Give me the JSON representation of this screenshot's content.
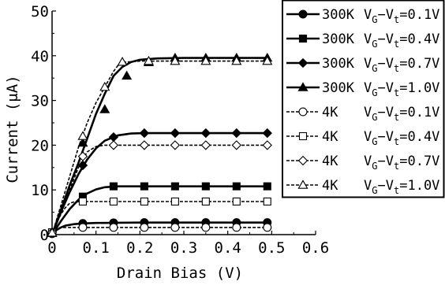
{
  "chart_data": {
    "type": "line",
    "title": "",
    "xlabel": "Drain Bias (V)",
    "ylabel_parts": [
      "Current (",
      "μ",
      "A)"
    ],
    "xlim": [
      0,
      0.6
    ],
    "ylim": [
      0,
      50
    ],
    "xticks": [
      "0",
      "0.1",
      "0.2",
      "0.3",
      "0.4",
      "0.5",
      "0.6"
    ],
    "yticks": [
      "0",
      "10",
      "20",
      "30",
      "40",
      "50"
    ],
    "grid": false,
    "legend_position": "top-right",
    "series": [
      {
        "temp": "300K",
        "bias": "0.1V",
        "marker": "circle-filled",
        "dashed": false,
        "curve": [
          [
            0,
            0
          ],
          [
            0.01,
            1.0
          ],
          [
            0.02,
            1.6
          ],
          [
            0.03,
            2.0
          ],
          [
            0.05,
            2.35
          ],
          [
            0.07,
            2.5
          ],
          [
            0.1,
            2.6
          ],
          [
            0.15,
            2.65
          ],
          [
            0.2,
            2.7
          ],
          [
            0.3,
            2.7
          ],
          [
            0.4,
            2.7
          ],
          [
            0.49,
            2.7
          ]
        ],
        "markers": [
          [
            0.0,
            0.2
          ],
          [
            0.07,
            2.5
          ],
          [
            0.14,
            2.65
          ],
          [
            0.21,
            2.7
          ],
          [
            0.28,
            2.7
          ],
          [
            0.35,
            2.7
          ],
          [
            0.42,
            2.7
          ],
          [
            0.49,
            2.7
          ]
        ]
      },
      {
        "temp": "300K",
        "bias": "0.4V",
        "marker": "square-filled",
        "dashed": false,
        "curve": [
          [
            0,
            0
          ],
          [
            0.02,
            3
          ],
          [
            0.04,
            5.7
          ],
          [
            0.06,
            7.8
          ],
          [
            0.08,
            9.2
          ],
          [
            0.1,
            10.1
          ],
          [
            0.12,
            10.6
          ],
          [
            0.15,
            10.8
          ],
          [
            0.2,
            10.8
          ],
          [
            0.3,
            10.8
          ],
          [
            0.4,
            10.8
          ],
          [
            0.49,
            10.8
          ]
        ],
        "markers": [
          [
            0.0,
            0.5
          ],
          [
            0.07,
            8.5
          ],
          [
            0.14,
            10.8
          ],
          [
            0.21,
            10.8
          ],
          [
            0.28,
            10.8
          ],
          [
            0.35,
            10.8
          ],
          [
            0.42,
            10.8
          ],
          [
            0.49,
            10.8
          ]
        ]
      },
      {
        "temp": "300K",
        "bias": "0.7V",
        "marker": "diamond-filled",
        "dashed": false,
        "curve": [
          [
            0,
            0
          ],
          [
            0.02,
            5
          ],
          [
            0.04,
            9.5
          ],
          [
            0.06,
            13.5
          ],
          [
            0.08,
            16.8
          ],
          [
            0.1,
            19.3
          ],
          [
            0.12,
            21
          ],
          [
            0.15,
            22.2
          ],
          [
            0.18,
            22.6
          ],
          [
            0.21,
            22.7
          ],
          [
            0.3,
            22.7
          ],
          [
            0.4,
            22.7
          ],
          [
            0.49,
            22.7
          ]
        ],
        "markers": [
          [
            0.0,
            0.5
          ],
          [
            0.07,
            15.5
          ],
          [
            0.14,
            21.8
          ],
          [
            0.21,
            22.7
          ],
          [
            0.28,
            22.7
          ],
          [
            0.35,
            22.7
          ],
          [
            0.42,
            22.7
          ],
          [
            0.49,
            22.7
          ]
        ]
      },
      {
        "temp": "300K",
        "bias": "1.0V",
        "marker": "triangle-filled",
        "dashed": false,
        "curve": [
          [
            0,
            0
          ],
          [
            0.02,
            5.5
          ],
          [
            0.04,
            11
          ],
          [
            0.06,
            16
          ],
          [
            0.08,
            21.5
          ],
          [
            0.1,
            27
          ],
          [
            0.12,
            31.5
          ],
          [
            0.14,
            35.5
          ],
          [
            0.16,
            37.5
          ],
          [
            0.18,
            38.6
          ],
          [
            0.2,
            39.1
          ],
          [
            0.24,
            39.4
          ],
          [
            0.3,
            39.5
          ],
          [
            0.4,
            39.5
          ],
          [
            0.49,
            39.5
          ]
        ],
        "markers": [
          [
            0.0,
            0.3
          ],
          [
            0.07,
            20.5
          ],
          [
            0.12,
            28
          ],
          [
            0.17,
            35.5
          ],
          [
            0.22,
            38.5
          ],
          [
            0.28,
            39.5
          ],
          [
            0.35,
            39.5
          ],
          [
            0.42,
            39.5
          ],
          [
            0.49,
            39.5
          ]
        ]
      },
      {
        "temp": "4K",
        "bias": "0.1V",
        "marker": "circle-open",
        "dashed": true,
        "curve": [
          [
            0,
            0
          ],
          [
            0.01,
            1.3
          ],
          [
            0.02,
            1.55
          ],
          [
            0.04,
            1.6
          ],
          [
            0.1,
            1.6
          ],
          [
            0.2,
            1.6
          ],
          [
            0.3,
            1.6
          ],
          [
            0.4,
            1.6
          ],
          [
            0.49,
            1.6
          ]
        ],
        "markers": [
          [
            0.0,
            0.3
          ],
          [
            0.07,
            1.6
          ],
          [
            0.14,
            1.6
          ],
          [
            0.21,
            1.6
          ],
          [
            0.28,
            1.6
          ],
          [
            0.35,
            1.6
          ],
          [
            0.42,
            1.6
          ],
          [
            0.49,
            1.6
          ]
        ]
      },
      {
        "temp": "4K",
        "bias": "0.4V",
        "marker": "square-open",
        "dashed": true,
        "curve": [
          [
            0,
            0
          ],
          [
            0.01,
            2.5
          ],
          [
            0.02,
            4.5
          ],
          [
            0.03,
            6
          ],
          [
            0.04,
            7
          ],
          [
            0.05,
            7.3
          ],
          [
            0.07,
            7.4
          ],
          [
            0.1,
            7.4
          ],
          [
            0.2,
            7.4
          ],
          [
            0.3,
            7.4
          ],
          [
            0.4,
            7.4
          ],
          [
            0.49,
            7.4
          ]
        ],
        "markers": [
          [
            0.0,
            0.5
          ],
          [
            0.07,
            7.4
          ],
          [
            0.14,
            7.4
          ],
          [
            0.21,
            7.4
          ],
          [
            0.28,
            7.4
          ],
          [
            0.35,
            7.4
          ],
          [
            0.42,
            7.4
          ],
          [
            0.49,
            7.4
          ]
        ]
      },
      {
        "temp": "4K",
        "bias": "0.7V",
        "marker": "diamond-open",
        "dashed": true,
        "curve": [
          [
            0,
            0
          ],
          [
            0.02,
            5
          ],
          [
            0.04,
            10
          ],
          [
            0.06,
            15
          ],
          [
            0.08,
            18.5
          ],
          [
            0.1,
            19.7
          ],
          [
            0.12,
            20
          ],
          [
            0.2,
            20
          ],
          [
            0.3,
            20
          ],
          [
            0.4,
            20
          ],
          [
            0.49,
            20
          ]
        ],
        "markers": [
          [
            0.0,
            0.5
          ],
          [
            0.07,
            17.5
          ],
          [
            0.14,
            20
          ],
          [
            0.21,
            20
          ],
          [
            0.28,
            20
          ],
          [
            0.35,
            20
          ],
          [
            0.42,
            20
          ],
          [
            0.49,
            20
          ]
        ]
      },
      {
        "temp": "4K",
        "bias": "1.0V",
        "marker": "triangle-open",
        "dashed": true,
        "curve": [
          [
            0,
            0
          ],
          [
            0.02,
            6.5
          ],
          [
            0.04,
            13
          ],
          [
            0.06,
            19.5
          ],
          [
            0.08,
            25
          ],
          [
            0.1,
            29.5
          ],
          [
            0.12,
            33
          ],
          [
            0.14,
            36.5
          ],
          [
            0.155,
            38.5
          ],
          [
            0.2,
            38.8
          ],
          [
            0.3,
            38.8
          ],
          [
            0.4,
            38.8
          ],
          [
            0.49,
            38.8
          ]
        ],
        "markers": [
          [
            0.0,
            0.4
          ],
          [
            0.07,
            22
          ],
          [
            0.12,
            33
          ],
          [
            0.16,
            38.6
          ],
          [
            0.22,
            38.8
          ],
          [
            0.28,
            38.8
          ],
          [
            0.35,
            38.8
          ],
          [
            0.42,
            38.8
          ],
          [
            0.49,
            38.8
          ]
        ]
      }
    ]
  },
  "legend_text": {
    "v_sym": "V",
    "v_sub_g": "G",
    "dash": "−",
    "v_sub_t": "t",
    "eq": "=",
    "entries": [
      {
        "temp": "300K",
        "bias": "0.1V"
      },
      {
        "temp": "300K",
        "bias": "0.4V"
      },
      {
        "temp": "300K",
        "bias": "0.7V"
      },
      {
        "temp": "300K",
        "bias": "1.0V"
      },
      {
        "temp": "4K",
        "bias": "0.1V"
      },
      {
        "temp": "4K",
        "bias": "0.4V"
      },
      {
        "temp": "4K",
        "bias": "0.7V"
      },
      {
        "temp": "4K",
        "bias": "1.0V"
      }
    ]
  }
}
